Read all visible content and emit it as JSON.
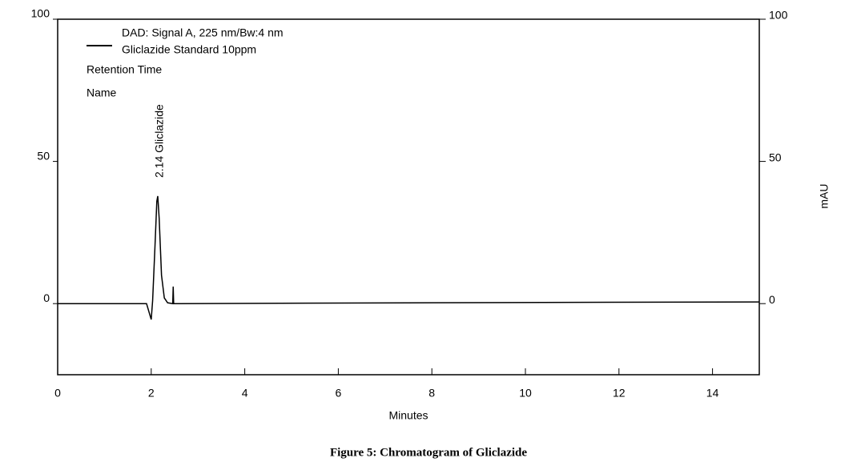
{
  "chart_data": {
    "type": "line",
    "caption": "Figure 5: Chromatogram of Gliclazide",
    "xlabel": "Minutes",
    "y2label": "mAU",
    "legend_text": [
      "Gliclazide Standard 10ppm",
      "Retention Time",
      "Name"
    ],
    "peak_label": "2.14 Gliclazide",
    "x": [
      0,
      1.9,
      2.0,
      2.03,
      2.08,
      2.12,
      2.14,
      2.17,
      2.22,
      2.28,
      2.35,
      2.46,
      2.47,
      2.48,
      2.6,
      8,
      15
    ],
    "series": [
      {
        "name": "DAD: Signal A, 225 nm/Bw:4 nm",
        "color": "#000000",
        "values": [
          0,
          0,
          -5.6,
          1,
          20,
          36,
          37.8,
          30,
          10,
          2,
          0.3,
          0,
          6,
          0,
          0,
          0.3,
          0.6
        ]
      }
    ],
    "xlim": [
      0,
      15
    ],
    "xticks": [
      0,
      2,
      4,
      6,
      8,
      10,
      12,
      14
    ],
    "ylim": [
      -25,
      100
    ],
    "yticks": [
      0,
      50,
      100
    ],
    "y2lim": [
      -25,
      100
    ],
    "y2ticks": [
      0,
      50,
      100
    ],
    "grid": false
  }
}
